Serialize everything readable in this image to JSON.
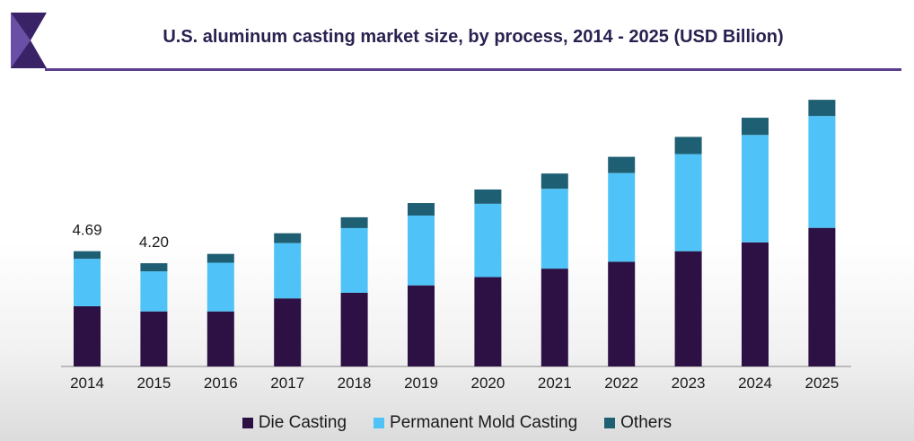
{
  "title": "U.S. aluminum casting market size, by process, 2014 - 2025 (USD Billion)",
  "colors": {
    "die_casting": "#2d1145",
    "permanent_mold": "#4fc3f7",
    "others": "#1f5f73",
    "logo_dark": "#3a2266",
    "logo_light": "#6a4fa6",
    "rule": "#5b3f8c"
  },
  "chart_data": {
    "type": "bar",
    "stacked": true,
    "categories": [
      "2014",
      "2015",
      "2016",
      "2017",
      "2018",
      "2019",
      "2020",
      "2021",
      "2022",
      "2023",
      "2024",
      "2025"
    ],
    "series": [
      {
        "name": "Die Casting",
        "values": [
          2.45,
          2.24,
          2.24,
          2.77,
          3.0,
          3.3,
          3.64,
          3.98,
          4.26,
          4.69,
          5.05,
          5.64
        ]
      },
      {
        "name": "Permanent Mold Casting",
        "values": [
          1.93,
          1.63,
          1.98,
          2.25,
          2.63,
          2.84,
          2.98,
          3.25,
          3.61,
          3.95,
          4.37,
          4.55
        ]
      },
      {
        "name": "Others",
        "values": [
          0.31,
          0.33,
          0.36,
          0.4,
          0.44,
          0.51,
          0.58,
          0.62,
          0.66,
          0.7,
          0.7,
          0.66
        ]
      }
    ],
    "data_labels": [
      {
        "category": "2014",
        "text": "4.69"
      },
      {
        "category": "2015",
        "text": "4.20"
      }
    ],
    "ylim": [
      0,
      11
    ],
    "grid": false,
    "legend_position": "bottom"
  }
}
